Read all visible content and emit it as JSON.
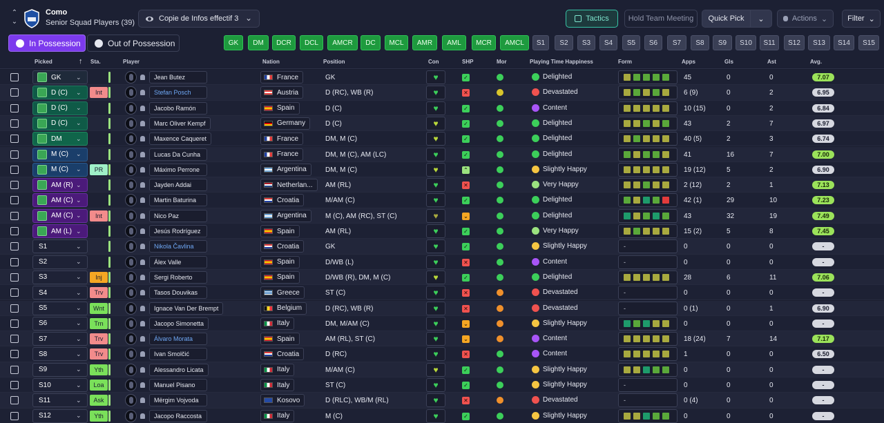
{
  "header": {
    "club_name": "Como",
    "squad_name": "Senior Squad Players (39)",
    "view_name": "Copie de Infos effectif 3",
    "buttons": {
      "tactics": "Tactics",
      "hold_meeting": "Hold Team Meeting",
      "quick_pick": "Quick Pick",
      "actions": "Actions",
      "filter": "Filter"
    }
  },
  "possession_tabs": {
    "in_possession": "In Possession",
    "out_of_possession": "Out of Possession"
  },
  "position_chips": [
    "GK",
    "DM",
    "DCR",
    "DCL",
    "AMCR",
    "DC",
    "MCL",
    "AMR",
    "AML",
    "MCR",
    "AMCL",
    "S1",
    "S2",
    "S3",
    "S4",
    "S5",
    "S6",
    "S7",
    "S8",
    "S9",
    "S10",
    "S11",
    "S12",
    "S13",
    "S14",
    "S15"
  ],
  "columns": {
    "picked": "Picked",
    "sta": "Sta.",
    "player": "Player",
    "nation": "Nation",
    "position": "Position",
    "con": "Con",
    "shp": "SHP",
    "mor": "Mor",
    "pth": "Playing Time Happiness",
    "form": "Form",
    "apps": "Apps",
    "gls": "Gls",
    "ast": "Ast",
    "avg": "Avg."
  },
  "rows": [
    {
      "picked": "GK",
      "pstyle": "gk",
      "pitch": true,
      "sta": "",
      "name": "Jean Butez",
      "link": false,
      "nation": "France",
      "flag": "fr",
      "position": "GK",
      "heart": "#3ccf5a",
      "shp": "ok",
      "mor": "green",
      "pth": "Delighted",
      "face": "delighted",
      "form": [
        "olive",
        "green",
        "green",
        "green",
        "green"
      ],
      "apps": "45",
      "gls": "0",
      "ast": "0",
      "avg": "7.07",
      "avgc": "green"
    },
    {
      "picked": "D (C)",
      "pstyle": "def",
      "pitch": true,
      "sta": "Int",
      "sstyle": "int",
      "name": "Stefan Posch",
      "link": true,
      "nation": "Austria",
      "flag": "at",
      "position": "D (RC), WB (R)",
      "heart": "#3ccf5a",
      "shp": "bad",
      "mor": "yellow",
      "pth": "Devastated",
      "face": "devastated",
      "form": [
        "olive",
        "green",
        "olive",
        "green",
        "olive"
      ],
      "apps": "6 (9)",
      "gls": "0",
      "ast": "2",
      "avg": "6.95",
      "avgc": "grey"
    },
    {
      "picked": "D (C)",
      "pstyle": "def",
      "pitch": true,
      "sta": "",
      "name": "Jacobo Ramón",
      "link": false,
      "nation": "Spain",
      "flag": "es",
      "position": "D (C)",
      "heart": "#3ccf5a",
      "shp": "ok",
      "mor": "green",
      "pth": "Content",
      "face": "content",
      "form": [
        "olive",
        "olive",
        "olive",
        "olive",
        "olive"
      ],
      "apps": "10 (15)",
      "gls": "0",
      "ast": "2",
      "avg": "6.84",
      "avgc": "grey"
    },
    {
      "picked": "D (C)",
      "pstyle": "def",
      "pitch": true,
      "sta": "",
      "name": "Marc Oliver Kempf",
      "link": false,
      "nation": "Germany",
      "flag": "de",
      "position": "D (C)",
      "heart": "#b9d83a",
      "shp": "ok",
      "mor": "green",
      "pth": "Delighted",
      "face": "delighted",
      "form": [
        "olive",
        "olive",
        "green",
        "olive",
        "green"
      ],
      "apps": "43",
      "gls": "2",
      "ast": "7",
      "avg": "6.97",
      "avgc": "grey"
    },
    {
      "picked": "DM",
      "pstyle": "dm",
      "pitch": true,
      "sta": "",
      "name": "Maxence Caqueret",
      "link": false,
      "nation": "France",
      "flag": "fr",
      "position": "DM, M (C)",
      "heart": "#b9d83a",
      "shp": "ok",
      "mor": "green",
      "pth": "Delighted",
      "face": "delighted",
      "form": [
        "olive",
        "green",
        "olive",
        "olive",
        "olive"
      ],
      "apps": "40 (5)",
      "gls": "2",
      "ast": "3",
      "avg": "6.74",
      "avgc": "grey"
    },
    {
      "picked": "M (C)",
      "pstyle": "mid",
      "pitch": true,
      "sta": "",
      "name": "Lucas Da Cunha",
      "link": false,
      "nation": "France",
      "flag": "fr",
      "position": "DM, M (C), AM (LC)",
      "heart": "#3ccf5a",
      "shp": "ok",
      "mor": "green",
      "pth": "Delighted",
      "face": "delighted",
      "form": [
        "green",
        "olive",
        "green",
        "green",
        "olive"
      ],
      "apps": "41",
      "gls": "16",
      "ast": "7",
      "avg": "7.00",
      "avgc": "green"
    },
    {
      "picked": "M (C)",
      "pstyle": "mid",
      "pitch": true,
      "sta": "PR",
      "sstyle": "pr",
      "name": "Máximo Perrone",
      "link": false,
      "nation": "Argentina",
      "flag": "ar",
      "position": "DM, M (C)",
      "heart": "#b9d83a",
      "shp": "up",
      "mor": "green",
      "pth": "Slightly Happy",
      "face": "slight",
      "form": [
        "olive",
        "olive",
        "olive",
        "olive",
        "olive"
      ],
      "apps": "19 (12)",
      "gls": "5",
      "ast": "2",
      "avg": "6.90",
      "avgc": "grey"
    },
    {
      "picked": "AM (R)",
      "pstyle": "am",
      "pitch": true,
      "sta": "",
      "name": "Jayden Addai",
      "link": false,
      "nation": "Netherlan...",
      "flag": "nl",
      "position": "AM (RL)",
      "heart": "#3ccf5a",
      "shp": "bad",
      "mor": "green",
      "pth": "Very Happy",
      "face": "veryhappy",
      "form": [
        "olive",
        "olive",
        "green",
        "olive",
        "olive"
      ],
      "apps": "2 (12)",
      "gls": "2",
      "ast": "1",
      "avg": "7.13",
      "avgc": "green"
    },
    {
      "picked": "AM (C)",
      "pstyle": "am",
      "pitch": true,
      "sta": "",
      "name": "Martin Baturina",
      "link": false,
      "nation": "Croatia",
      "flag": "hr",
      "position": "M/AM (C)",
      "heart": "#3ccf5a",
      "shp": "ok",
      "mor": "green",
      "pth": "Delighted",
      "face": "delighted",
      "form": [
        "green",
        "olive",
        "teal",
        "green",
        "red"
      ],
      "apps": "42 (1)",
      "gls": "29",
      "ast": "10",
      "avg": "7.23",
      "avgc": "green"
    },
    {
      "picked": "AM (C)",
      "pstyle": "am",
      "pitch": true,
      "sta": "Int",
      "sstyle": "int",
      "name": "Nico Paz",
      "link": false,
      "nation": "Argentina",
      "flag": "ar",
      "position": "M (C), AM (RC), ST (C)",
      "heart": "#a8a93f",
      "shp": "warn",
      "mor": "green",
      "pth": "Delighted",
      "face": "delighted",
      "form": [
        "teal",
        "olive",
        "green",
        "teal",
        "green"
      ],
      "apps": "43",
      "gls": "32",
      "ast": "19",
      "avg": "7.49",
      "avgc": "green"
    },
    {
      "picked": "AM (L)",
      "pstyle": "am",
      "pitch": true,
      "sta": "",
      "name": "Jesús Rodríguez",
      "link": false,
      "nation": "Spain",
      "flag": "es",
      "position": "AM (RL)",
      "heart": "#3ccf5a",
      "shp": "ok",
      "mor": "green",
      "pth": "Very Happy",
      "face": "veryhappy",
      "form": [
        "olive",
        "green",
        "olive",
        "olive",
        "olive"
      ],
      "apps": "15 (2)",
      "gls": "5",
      "ast": "8",
      "avg": "7.45",
      "avgc": "green"
    },
    {
      "picked": "S1",
      "pstyle": "sub",
      "pitch": false,
      "sta": "",
      "name": "Nikola Čavlina",
      "link": true,
      "nation": "Croatia",
      "flag": "hr",
      "position": "GK",
      "heart": "#3ccf5a",
      "shp": "ok",
      "mor": "green",
      "pth": "Slightly Happy",
      "face": "slight",
      "form": [],
      "apps": "0",
      "gls": "0",
      "ast": "0",
      "avg": "-",
      "avgc": "grey"
    },
    {
      "picked": "S2",
      "pstyle": "sub",
      "pitch": false,
      "sta": "",
      "name": "Álex Valle",
      "link": false,
      "nation": "Spain",
      "flag": "es",
      "position": "D/WB (L)",
      "heart": "#3ccf5a",
      "shp": "bad",
      "mor": "green",
      "pth": "Content",
      "face": "content",
      "form": [],
      "apps": "0",
      "gls": "0",
      "ast": "0",
      "avg": "-",
      "avgc": "grey"
    },
    {
      "picked": "S3",
      "pstyle": "sub",
      "pitch": false,
      "sta": "Inj",
      "sstyle": "inj",
      "name": "Sergi Roberto",
      "link": false,
      "nation": "Spain",
      "flag": "es",
      "position": "D/WB (R), DM, M (C)",
      "heart": "#b9d83a",
      "shp": "ok",
      "mor": "green",
      "pth": "Delighted",
      "face": "delighted",
      "form": [
        "olive",
        "olive",
        "olive",
        "olive",
        "olive"
      ],
      "apps": "28",
      "gls": "6",
      "ast": "11",
      "avg": "7.06",
      "avgc": "green"
    },
    {
      "picked": "S4",
      "pstyle": "sub",
      "pitch": false,
      "sta": "Trv",
      "sstyle": "trv",
      "name": "Tasos Douvikas",
      "link": false,
      "nation": "Greece",
      "flag": "gr",
      "position": "ST (C)",
      "heart": "#3ccf5a",
      "shp": "bad",
      "mor": "orange",
      "pth": "Devastated",
      "face": "devastated",
      "form": [],
      "apps": "0",
      "gls": "0",
      "ast": "0",
      "avg": "-",
      "avgc": "grey"
    },
    {
      "picked": "S5",
      "pstyle": "sub",
      "pitch": false,
      "sta": "Wnt",
      "sstyle": "wnt",
      "name": "Ignace Van Der Brempt",
      "link": false,
      "nation": "Belgium",
      "flag": "be",
      "position": "D (RC), WB (R)",
      "heart": "#3ccf5a",
      "shp": "bad",
      "mor": "orange",
      "pth": "Devastated",
      "face": "devastated",
      "form": [],
      "apps": "0 (1)",
      "gls": "0",
      "ast": "1",
      "avg": "6.90",
      "avgc": "grey"
    },
    {
      "picked": "S6",
      "pstyle": "sub",
      "pitch": false,
      "sta": "Trn",
      "sstyle": "trn",
      "name": "Jacopo Simonetta",
      "link": false,
      "nation": "Italy",
      "flag": "it",
      "position": "DM, M/AM (C)",
      "heart": "#3ccf5a",
      "shp": "warn",
      "mor": "orange",
      "pth": "Slightly Happy",
      "face": "slight",
      "form": [
        "teal",
        "green",
        "teal",
        "olive",
        "olive"
      ],
      "apps": "0",
      "gls": "0",
      "ast": "0",
      "avg": "-",
      "avgc": "grey"
    },
    {
      "picked": "S7",
      "pstyle": "sub",
      "pitch": false,
      "sta": "Trv",
      "sstyle": "trv",
      "name": "Álvaro Morata",
      "link": true,
      "nation": "Spain",
      "flag": "es",
      "position": "AM (RL), ST (C)",
      "heart": "#3ccf5a",
      "shp": "warn",
      "mor": "orange",
      "pth": "Content",
      "face": "content",
      "form": [
        "olive",
        "olive",
        "olive",
        "olive",
        "olive"
      ],
      "apps": "18 (24)",
      "gls": "7",
      "ast": "14",
      "avg": "7.17",
      "avgc": "green"
    },
    {
      "picked": "S8",
      "pstyle": "sub",
      "pitch": false,
      "sta": "Trv",
      "sstyle": "trv",
      "name": "Ivan Smolčić",
      "link": false,
      "nation": "Croatia",
      "flag": "hr",
      "position": "D (RC)",
      "heart": "#3ccf5a",
      "shp": "bad",
      "mor": "green",
      "pth": "Content",
      "face": "content",
      "form": [
        "olive",
        "olive",
        "olive",
        "olive",
        "olive"
      ],
      "apps": "1",
      "gls": "0",
      "ast": "0",
      "avg": "6.50",
      "avgc": "grey"
    },
    {
      "picked": "S9",
      "pstyle": "sub",
      "pitch": false,
      "sta": "Yth",
      "sstyle": "yth",
      "name": "Alessandro Licata",
      "link": false,
      "nation": "Italy",
      "flag": "it",
      "position": "M/AM (C)",
      "heart": "#b9d83a",
      "shp": "ok",
      "mor": "green",
      "pth": "Slightly Happy",
      "face": "slight",
      "form": [
        "olive",
        "olive",
        "teal",
        "green",
        "green"
      ],
      "apps": "0",
      "gls": "0",
      "ast": "0",
      "avg": "-",
      "avgc": "grey"
    },
    {
      "picked": "S10",
      "pstyle": "sub",
      "pitch": false,
      "sta": "Loa",
      "sstyle": "loa",
      "name": "Manuel Pisano",
      "link": false,
      "nation": "Italy",
      "flag": "it",
      "position": "ST (C)",
      "heart": "#3ccf5a",
      "shp": "ok",
      "mor": "green",
      "pth": "Slightly Happy",
      "face": "slight",
      "form": [],
      "apps": "0",
      "gls": "0",
      "ast": "0",
      "avg": "-",
      "avgc": "grey"
    },
    {
      "picked": "S11",
      "pstyle": "sub",
      "pitch": false,
      "sta": "Ask",
      "sstyle": "ask",
      "name": "Mërgim Vojvoda",
      "link": false,
      "nation": "Kosovo",
      "flag": "xk",
      "position": "D (RLC), WB/M (RL)",
      "heart": "#3ccf5a",
      "shp": "bad",
      "mor": "orange",
      "pth": "Devastated",
      "face": "devastated",
      "form": [],
      "apps": "0 (4)",
      "gls": "0",
      "ast": "0",
      "avg": "-",
      "avgc": "grey"
    },
    {
      "picked": "S12",
      "pstyle": "sub",
      "pitch": false,
      "sta": "Yth",
      "sstyle": "yth",
      "name": "Jacopo Raccosta",
      "link": false,
      "nation": "Italy",
      "flag": "it",
      "position": "M (C)",
      "heart": "#3ccf5a",
      "shp": "ok",
      "mor": "green",
      "pth": "Slightly Happy",
      "face": "slight",
      "form": [
        "olive",
        "olive",
        "teal",
        "green",
        "green"
      ],
      "apps": "0",
      "gls": "0",
      "ast": "0",
      "avg": "-",
      "avgc": "grey"
    }
  ]
}
